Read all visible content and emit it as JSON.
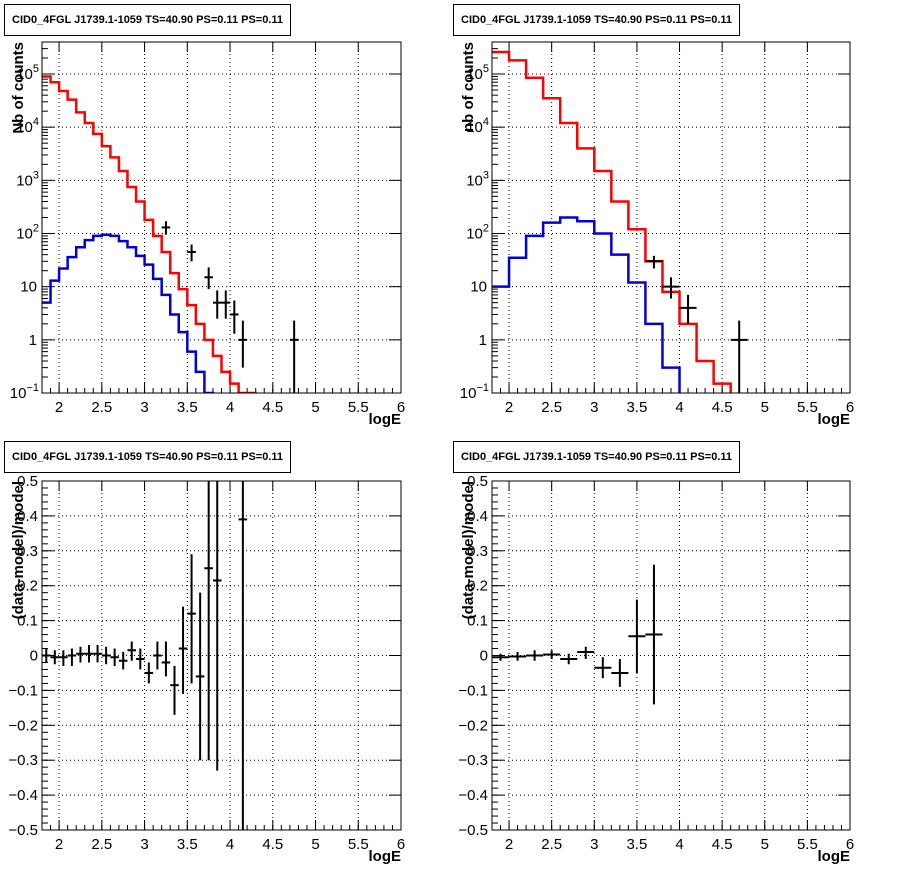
{
  "colors": {
    "data": "#000000",
    "total": "#ff0000",
    "source": "#0000dd",
    "grid": "#000000",
    "background": "#ffffff"
  },
  "chart_data": [
    {
      "id": "spectrum-fine",
      "type": "line",
      "title": "CID0_4FGL J1739.1-1059 TS=40.90 PS=0.11 PS=0.11",
      "xlabel": "logE",
      "ylabel": "Nb of counts",
      "xlim": [
        1.8,
        6.0
      ],
      "ylim": [
        0.1,
        400000
      ],
      "y_scale": "log",
      "grid": true,
      "x_ticks": [
        "2",
        "2.5",
        "3",
        "3.5",
        "4",
        "4.5",
        "5",
        "5.5",
        "6"
      ],
      "y_ticks": [
        "10^-1",
        "1",
        "10",
        "10^2",
        "10^3",
        "10^4",
        "10^5"
      ],
      "bin_edges": [
        1.8,
        1.9,
        2.0,
        2.1,
        2.2,
        2.3,
        2.4,
        2.5,
        2.6,
        2.7,
        2.8,
        2.9,
        3.0,
        3.1,
        3.2,
        3.3,
        3.4,
        3.5,
        3.6,
        3.7,
        3.8,
        3.9,
        4.0,
        4.1,
        4.2,
        4.3,
        4.4,
        4.5,
        4.6,
        4.7,
        4.8,
        4.9,
        5.0,
        5.1,
        5.2,
        5.3,
        5.4,
        5.5,
        5.6,
        5.7,
        5.8,
        5.9,
        6.0
      ],
      "series": [
        {
          "role": "total",
          "values": [
            90000,
            70000,
            48000,
            33000,
            19000,
            12000,
            7500,
            4400,
            2700,
            1500,
            750,
            400,
            180,
            90,
            45,
            18,
            9,
            4.5,
            2,
            1,
            0.5,
            0.25,
            0.15,
            0.1,
            0.1,
            0,
            0,
            0,
            0,
            0,
            0,
            0,
            0,
            0,
            0,
            0,
            0,
            0,
            0,
            0,
            0,
            0
          ]
        },
        {
          "role": "source",
          "values": [
            5,
            13,
            22,
            36,
            55,
            75,
            90,
            95,
            90,
            72,
            55,
            38,
            26,
            14,
            7,
            3,
            1.4,
            0.6,
            0.25,
            0.1,
            0,
            0,
            0,
            0,
            0,
            0,
            0,
            0,
            0,
            0,
            0,
            0,
            0,
            0,
            0,
            0,
            0,
            0,
            0,
            0,
            0,
            0
          ]
        },
        {
          "role": "data",
          "points": [
            {
              "x": 3.25,
              "y": 130,
              "ylo": 95,
              "yhi": 170
            },
            {
              "x": 3.55,
              "y": 45,
              "ylo": 30,
              "yhi": 62
            },
            {
              "x": 3.75,
              "y": 15,
              "ylo": 9,
              "yhi": 23
            },
            {
              "x": 3.85,
              "y": 5,
              "ylo": 2.5,
              "yhi": 8.5
            },
            {
              "x": 3.95,
              "y": 5,
              "ylo": 2.5,
              "yhi": 8.5
            },
            {
              "x": 4.05,
              "y": 3,
              "ylo": 1.3,
              "yhi": 5.5
            },
            {
              "x": 4.15,
              "y": 1,
              "ylo": 0.3,
              "yhi": 2.3
            },
            {
              "x": 4.75,
              "y": 1,
              "ylo": 0.1,
              "yhi": 2.3
            }
          ]
        }
      ]
    },
    {
      "id": "spectrum-coarse",
      "type": "line",
      "title": "CID0_4FGL J1739.1-1059 TS=40.90 PS=0.11 PS=0.11",
      "xlabel": "logE",
      "ylabel": "nb of counts",
      "xlim": [
        1.8,
        6.0
      ],
      "ylim": [
        0.1,
        400000
      ],
      "y_scale": "log",
      "grid": true,
      "x_ticks": [
        "2",
        "2.5",
        "3",
        "3.5",
        "4",
        "4.5",
        "5",
        "5.5",
        "6"
      ],
      "y_ticks": [
        "10^-1",
        "1",
        "10",
        "10^2",
        "10^3",
        "10^4",
        "10^5"
      ],
      "bin_edges": [
        1.8,
        2.0,
        2.2,
        2.4,
        2.6,
        2.8,
        3.0,
        3.2,
        3.4,
        3.6,
        3.8,
        4.0,
        4.2,
        4.4,
        4.6,
        4.8,
        5.0,
        5.2,
        5.4,
        5.6,
        5.8,
        6.0
      ],
      "series": [
        {
          "role": "total",
          "values": [
            260000,
            180000,
            85000,
            35000,
            12000,
            4000,
            1500,
            400,
            120,
            30,
            8,
            2,
            0.4,
            0.15,
            0,
            0,
            0,
            0,
            0,
            0,
            0
          ]
        },
        {
          "role": "source",
          "values": [
            10,
            35,
            90,
            160,
            200,
            170,
            100,
            40,
            12,
            2,
            0.3,
            0,
            0,
            0,
            0,
            0,
            0,
            0,
            0,
            0,
            0
          ]
        },
        {
          "role": "data",
          "points": [
            {
              "x": 3.7,
              "y": 30,
              "ylo": 22,
              "yhi": 38
            },
            {
              "x": 3.9,
              "y": 10,
              "ylo": 6,
              "yhi": 15
            },
            {
              "x": 4.1,
              "y": 4,
              "ylo": 2,
              "yhi": 7
            },
            {
              "x": 4.7,
              "y": 1,
              "ylo": 0.1,
              "yhi": 2.3
            }
          ]
        }
      ]
    },
    {
      "id": "residual-fine",
      "type": "scatter",
      "title": "CID0_4FGL J1739.1-1059 TS=40.90 PS=0.11 PS=0.11",
      "xlabel": "logE",
      "ylabel": "(data-model)/model",
      "xlim": [
        1.8,
        6.0
      ],
      "ylim": [
        -0.5,
        0.5
      ],
      "grid": true,
      "x_ticks": [
        "2",
        "2.5",
        "3",
        "3.5",
        "4",
        "4.5",
        "5",
        "5.5",
        "6"
      ],
      "y_ticks": [
        "−0.5",
        "−0.4",
        "−0.3",
        "−0.2",
        "−0.1",
        "0",
        "0.1",
        "0.2",
        "0.3",
        "0.4",
        "0.5"
      ],
      "series": [
        {
          "role": "data",
          "half_width": 0.05,
          "points": [
            {
              "x": 1.85,
              "y": 0.0,
              "ylo": -0.02,
              "yhi": 0.02
            },
            {
              "x": 1.95,
              "y": -0.005,
              "ylo": -0.025,
              "yhi": 0.015
            },
            {
              "x": 2.05,
              "y": -0.005,
              "ylo": -0.03,
              "yhi": 0.015
            },
            {
              "x": 2.15,
              "y": 0.0,
              "ylo": -0.03,
              "yhi": 0.02
            },
            {
              "x": 2.25,
              "y": 0.005,
              "ylo": -0.02,
              "yhi": 0.025
            },
            {
              "x": 2.35,
              "y": 0.005,
              "ylo": -0.02,
              "yhi": 0.03
            },
            {
              "x": 2.45,
              "y": 0.005,
              "ylo": -0.02,
              "yhi": 0.03
            },
            {
              "x": 2.55,
              "y": 0.0,
              "ylo": -0.025,
              "yhi": 0.025
            },
            {
              "x": 2.65,
              "y": -0.005,
              "ylo": -0.03,
              "yhi": 0.02
            },
            {
              "x": 2.75,
              "y": -0.015,
              "ylo": -0.04,
              "yhi": 0.01
            },
            {
              "x": 2.85,
              "y": 0.015,
              "ylo": -0.015,
              "yhi": 0.04
            },
            {
              "x": 2.95,
              "y": -0.01,
              "ylo": -0.04,
              "yhi": 0.02
            },
            {
              "x": 3.05,
              "y": -0.05,
              "ylo": -0.08,
              "yhi": -0.02
            },
            {
              "x": 3.15,
              "y": 0.0,
              "ylo": -0.04,
              "yhi": 0.04
            },
            {
              "x": 3.25,
              "y": -0.02,
              "ylo": -0.06,
              "yhi": 0.04
            },
            {
              "x": 3.35,
              "y": -0.085,
              "ylo": -0.17,
              "yhi": -0.03
            },
            {
              "x": 3.45,
              "y": 0.02,
              "ylo": -0.11,
              "yhi": 0.14
            },
            {
              "x": 3.55,
              "y": 0.12,
              "ylo": -0.08,
              "yhi": 0.29
            },
            {
              "x": 3.65,
              "y": -0.06,
              "ylo": -0.3,
              "yhi": 0.18
            },
            {
              "x": 3.75,
              "y": 0.25,
              "ylo": -0.3,
              "yhi": 0.5
            },
            {
              "x": 3.85,
              "y": 0.215,
              "ylo": -0.33,
              "yhi": 0.5
            },
            {
              "x": 4.15,
              "y": 0.39,
              "ylo": -0.5,
              "yhi": 0.5
            }
          ]
        }
      ]
    },
    {
      "id": "residual-coarse",
      "type": "scatter",
      "title": "CID0_4FGL J1739.1-1059 TS=40.90 PS=0.11 PS=0.11",
      "xlabel": "logE",
      "ylabel": "(data-model)/model",
      "xlim": [
        1.8,
        6.0
      ],
      "ylim": [
        -0.5,
        0.5
      ],
      "grid": true,
      "x_ticks": [
        "2",
        "2.5",
        "3",
        "3.5",
        "4",
        "4.5",
        "5",
        "5.5",
        "6"
      ],
      "y_ticks": [
        "−0.5",
        "−0.4",
        "−0.3",
        "−0.2",
        "−0.1",
        "0",
        "0.1",
        "0.2",
        "0.3",
        "0.4",
        "0.5"
      ],
      "series": [
        {
          "role": "data",
          "half_width": 0.1,
          "points": [
            {
              "x": 1.9,
              "y": -0.005,
              "ylo": -0.015,
              "yhi": 0.005
            },
            {
              "x": 2.1,
              "y": -0.003,
              "ylo": -0.015,
              "yhi": 0.01
            },
            {
              "x": 2.3,
              "y": 0.0,
              "ylo": -0.015,
              "yhi": 0.015
            },
            {
              "x": 2.5,
              "y": 0.003,
              "ylo": -0.01,
              "yhi": 0.015
            },
            {
              "x": 2.7,
              "y": -0.01,
              "ylo": -0.025,
              "yhi": 0.005
            },
            {
              "x": 2.9,
              "y": 0.01,
              "ylo": -0.01,
              "yhi": 0.025
            },
            {
              "x": 3.1,
              "y": -0.035,
              "ylo": -0.065,
              "yhi": -0.005
            },
            {
              "x": 3.3,
              "y": -0.05,
              "ylo": -0.09,
              "yhi": -0.01
            },
            {
              "x": 3.5,
              "y": 0.055,
              "ylo": -0.05,
              "yhi": 0.16
            },
            {
              "x": 3.7,
              "y": 0.06,
              "ylo": -0.14,
              "yhi": 0.26
            }
          ]
        }
      ]
    }
  ]
}
